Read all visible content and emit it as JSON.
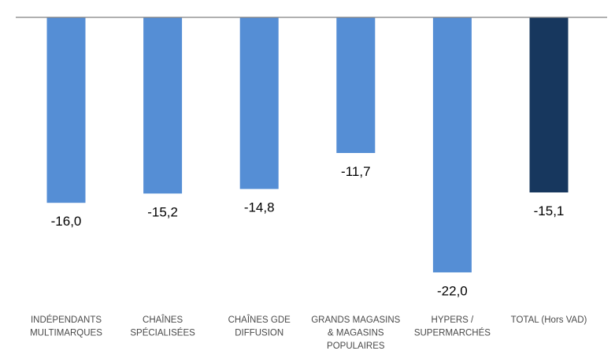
{
  "chart_data": {
    "type": "bar",
    "categories": [
      [
        "INDÉPENDANTS",
        "MULTIMARQUES"
      ],
      [
        "CHAÎNES",
        "SPÉCIALISÉES"
      ],
      [
        "CHAÎNES GDE",
        "DIFFUSION"
      ],
      [
        "GRANDS MAGASINS",
        "& MAGASINS",
        "POPULAIRES"
      ],
      [
        "HYPERS /",
        "SUPERMARCHÉS"
      ],
      [
        "TOTAL (Hors VAD)"
      ]
    ],
    "values": [
      -16.0,
      -15.2,
      -14.8,
      -11.7,
      -22.0,
      -15.1
    ],
    "value_labels": [
      "-16,0",
      "-15,2",
      "-14,8",
      "-11,7",
      "-22,0",
      "-15,1"
    ],
    "ylim": [
      -22,
      0
    ],
    "colors": [
      "#558ED5",
      "#558ED5",
      "#558ED5",
      "#558ED5",
      "#558ED5",
      "#17375E"
    ],
    "grid": false,
    "legend": "none"
  }
}
